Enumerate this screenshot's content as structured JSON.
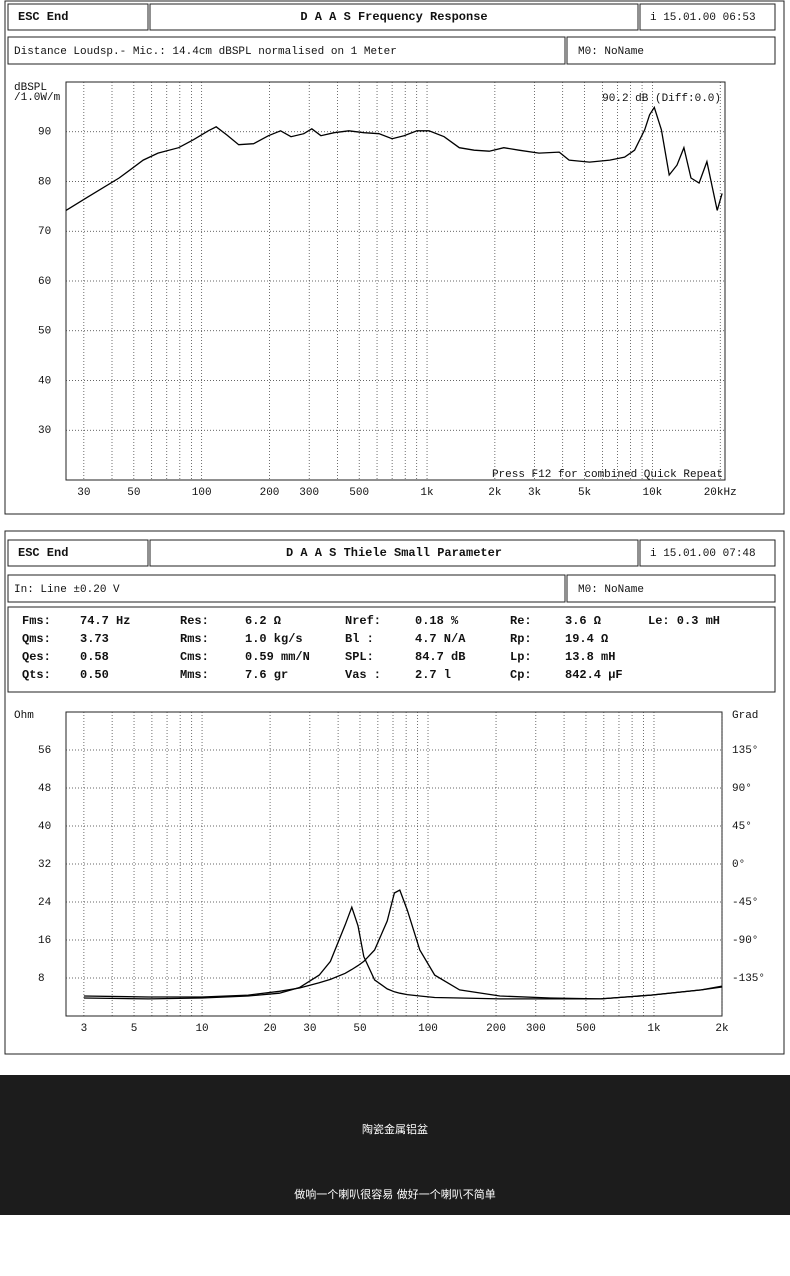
{
  "panels": [
    {
      "esc": "ESC End",
      "title": "D A A S  Frequency Response",
      "date": "i 15.01.00 06:53",
      "info": "Distance Loudsp.- Mic.: 14.4cm dBSPL normalised on 1 Meter",
      "mo": "M0: NoName"
    },
    {
      "esc": "ESC End",
      "title": "D A A S  Thiele Small Parameter",
      "date": "i 15.01.00 07:48",
      "info": "In: Line  ±0.20 V",
      "mo": "M0: NoName"
    }
  ],
  "parameters": [
    [
      "Fms:",
      "74.7 Hz",
      "Res:",
      "6.2 Ω",
      "Nref:",
      "0.18 %",
      "Re:",
      "3.6 Ω",
      "Le: 0.3 mH"
    ],
    [
      "Qms:",
      "3.73",
      "Rms:",
      "1.0 kg/s",
      "Bl :",
      "4.7 N/A",
      "Rp:",
      "19.4 Ω"
    ],
    [
      "Qes:",
      "0.58",
      "Cms:",
      "0.59 mm/N",
      "SPL:",
      "84.7 dB",
      "Lp:",
      "13.8 mH"
    ],
    [
      "Qts:",
      "0.50",
      "Mms:",
      "7.6 gr",
      "Vas :",
      "2.7 l",
      "Cp:",
      "842.4 µF"
    ]
  ],
  "chart_data": [
    {
      "type": "line",
      "ylabel": [
        "dBSPL",
        "/1.0W/m"
      ],
      "annotations": [
        "90.2 dB (Diff:0.0)",
        "Press F12 for combined Quick Repeat"
      ],
      "log_x": true,
      "grid": true,
      "xlim": [
        25,
        21000
      ],
      "ylim": [
        20,
        100
      ],
      "xticks": [
        30,
        50,
        100,
        200,
        300,
        500,
        {
          "value": 1000,
          "label": "1k"
        },
        {
          "value": 2000,
          "label": "2k"
        },
        {
          "value": 3000,
          "label": "3k"
        },
        {
          "value": 5000,
          "label": "5k"
        },
        {
          "value": 10000,
          "label": "10k"
        },
        {
          "value": 20000,
          "label": "20kHz"
        }
      ],
      "x_minor_grid": [
        40,
        60,
        70,
        80,
        90,
        400,
        600,
        700,
        800,
        900,
        4000,
        6000,
        7000,
        8000,
        9000
      ],
      "yticks": [
        30,
        40,
        50,
        60,
        70,
        80,
        90
      ],
      "x": [
        25,
        31,
        43,
        55,
        64,
        79,
        92,
        107,
        116,
        129,
        146,
        170,
        198,
        224,
        249,
        284,
        308,
        338,
        387,
        450,
        525,
        612,
        700,
        790,
        903,
        1020,
        1190,
        1390,
        1620,
        1890,
        2190,
        2560,
        3140,
        3860,
        4270,
        5260,
        6470,
        7530,
        8340,
        9240,
        9720,
        10200,
        10960,
        11870,
        12860,
        13800,
        14830,
        16110,
        17450,
        18580,
        19390,
        20380
      ],
      "series": [
        {
          "color": "#000000",
          "values": [
            74.2,
            76.8,
            80.7,
            84.3,
            85.7,
            86.8,
            88.4,
            90.2,
            91,
            89.4,
            87.4,
            87.6,
            89.2,
            90.2,
            89,
            89.6,
            90.6,
            89.2,
            89.8,
            90.2,
            89.8,
            89.6,
            88.6,
            89.2,
            90.2,
            90.2,
            89,
            86.8,
            86.3,
            86.1,
            86.8,
            86.3,
            85.7,
            85.9,
            84.3,
            83.9,
            84.3,
            84.9,
            86.3,
            90.4,
            93.4,
            94.9,
            90.4,
            81.3,
            83.3,
            86.8,
            80.7,
            79.7,
            84,
            78.2,
            74.2,
            77.6
          ]
        }
      ]
    },
    {
      "type": "line",
      "ylabel": "Ohm",
      "y2label": "Grad",
      "log_x": true,
      "grid": true,
      "xlim": [
        2.5,
        2000
      ],
      "ylim": [
        0,
        64
      ],
      "y2lim": [
        -180,
        180
      ],
      "xticks": [
        3,
        5,
        10,
        20,
        30,
        50,
        100,
        200,
        300,
        500,
        {
          "value": 1000,
          "label": "1k"
        },
        {
          "value": 2000,
          "label": "2k"
        }
      ],
      "x_minor_grid": [
        4,
        6,
        7,
        8,
        9,
        40,
        60,
        70,
        80,
        90,
        400,
        600,
        700,
        800,
        900
      ],
      "yticks": [
        8,
        16,
        24,
        32,
        40,
        48,
        56
      ],
      "y2ticks": [
        {
          "value": 135,
          "label": "135°"
        },
        {
          "value": 90,
          "label": "90°"
        },
        {
          "value": 45,
          "label": "45°"
        },
        {
          "value": 0,
          "label": "0°"
        },
        {
          "value": -45,
          "label": "-45°"
        },
        {
          "value": -90,
          "label": "-90°"
        },
        {
          "value": -135,
          "label": "-135°"
        }
      ],
      "x": [
        3,
        5.8,
        10,
        16,
        22,
        27,
        33,
        37,
        43,
        46,
        49,
        52,
        58,
        66,
        71,
        75,
        81,
        92,
        107,
        138,
        208,
        348,
        580,
        970,
        1620,
        2000
      ],
      "series": [
        {
          "color": "#000000",
          "values": [
            3.8,
            3.6,
            3.8,
            4.2,
            4.8,
            6,
            8.6,
            11.5,
            19.2,
            22.9,
            19,
            12.5,
            7.6,
            5.7,
            5.1,
            4.8,
            4.5,
            4.2,
            3.9,
            3.8,
            3.6,
            3.6,
            3.6,
            4.4,
            5.5,
            6.1
          ]
        },
        {
          "color": "#000000",
          "values": [
            4.2,
            4,
            4,
            4.4,
            5.2,
            5.9,
            7,
            7.7,
            9,
            9.8,
            10.6,
            11.5,
            13.9,
            20,
            25.9,
            26.5,
            22.3,
            13.9,
            8.6,
            5.5,
            4.2,
            3.8,
            3.6,
            4.4,
            5.5,
            6.3
          ]
        }
      ]
    }
  ],
  "banner": {
    "title": "陶瓷金属铝盆",
    "subtitle": "做响一个喇叭很容易  做好一个喇叭不简单"
  }
}
